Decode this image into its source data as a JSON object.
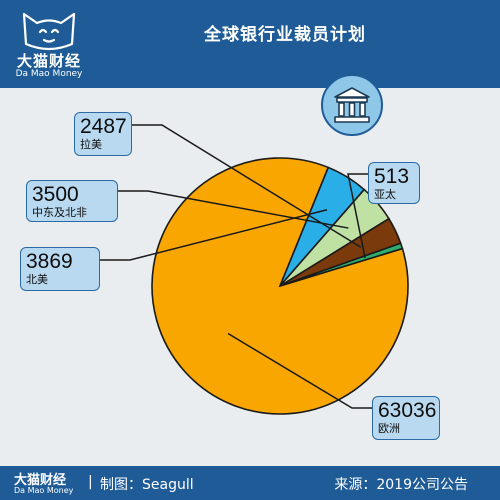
{
  "header": {
    "title": "全球银行业裁员计划",
    "logo_cn": "大猫财经",
    "logo_en": "Da Mao Money"
  },
  "footer": {
    "logo_cn": "大猫财经",
    "logo_en": "Da Mao Money",
    "separator": "|",
    "credit": "制图：Seagull",
    "source": "来源：2019公司公告"
  },
  "icons": {
    "header_logo": "cat-logo-icon",
    "badge": "bank-building-icon"
  },
  "colors": {
    "header_bg": "#1f5c97",
    "label_bg": "#b9d9f1",
    "europe": "#f9a600",
    "north_america": "#2aaee8",
    "middle_east_north_africa": "#bfe2a4",
    "latin_america": "#7a3a0c",
    "asia_pacific": "#2fae6e"
  },
  "chart_data": {
    "type": "pie",
    "title": "全球银行业裁员计划",
    "slices": [
      {
        "label": "欧洲",
        "value": 63036,
        "color": "#f9a600"
      },
      {
        "label": "北美",
        "value": 3869,
        "color": "#2aaee8"
      },
      {
        "label": "中东及北非",
        "value": 3500,
        "color": "#bfe2a4"
      },
      {
        "label": "拉美",
        "value": 2487,
        "color": "#7a3a0c"
      },
      {
        "label": "亚太",
        "value": 513,
        "color": "#2fae6e"
      }
    ],
    "display": {
      "欧洲": {
        "num": "63036",
        "region": "欧洲"
      },
      "北美": {
        "num": "3869",
        "region": "北美"
      },
      "中东及北非": {
        "num": "3500",
        "region": "中东及北非"
      },
      "拉美": {
        "num": "2487",
        "region": "拉美"
      },
      "亚太": {
        "num": "513",
        "region": "亚太"
      }
    }
  }
}
